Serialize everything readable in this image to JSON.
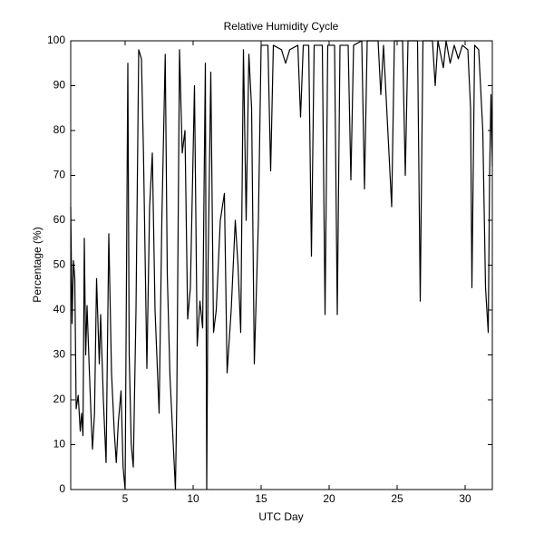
{
  "chart_data": {
    "type": "line",
    "title": "Relative Humidity Cycle",
    "xlabel": "UTC Day",
    "ylabel": "Percentage (%)",
    "xlim": [
      1,
      32
    ],
    "ylim": [
      0,
      100
    ],
    "xticks": [
      5,
      10,
      15,
      20,
      25,
      30
    ],
    "yticks": [
      0,
      10,
      20,
      30,
      40,
      50,
      60,
      70,
      80,
      90,
      100
    ],
    "grid": false,
    "series": [
      {
        "name": "Relative Humidity",
        "color": "#000000",
        "x": [
          1.0,
          1.1,
          1.2,
          1.3,
          1.4,
          1.55,
          1.7,
          1.8,
          1.9,
          2.0,
          2.1,
          2.2,
          2.35,
          2.5,
          2.6,
          2.75,
          2.9,
          3.1,
          3.2,
          3.4,
          3.6,
          3.8,
          4.0,
          4.2,
          4.35,
          4.5,
          4.7,
          4.85,
          5.0,
          5.2,
          5.3,
          5.45,
          5.6,
          5.8,
          6.0,
          6.2,
          6.35,
          6.6,
          6.8,
          7.0,
          7.2,
          7.5,
          7.7,
          7.95,
          8.1,
          8.3,
          8.7,
          8.8,
          9.0,
          9.2,
          9.4,
          9.6,
          9.8,
          10.1,
          10.3,
          10.5,
          10.7,
          10.9,
          11.0,
          11.1,
          11.3,
          11.5,
          11.7,
          12.0,
          12.3,
          12.5,
          12.8,
          13.1,
          13.3,
          13.5,
          13.7,
          13.9,
          14.1,
          14.3,
          14.5,
          14.8,
          15.0,
          15.5,
          15.7,
          15.9,
          16.5,
          16.8,
          17.1,
          17.7,
          17.9,
          18.1,
          18.5,
          18.7,
          18.9,
          19.5,
          19.7,
          19.9,
          20.4,
          20.6,
          20.8,
          21.4,
          21.6,
          21.8,
          22.4,
          22.6,
          22.8,
          23.6,
          23.8,
          24.0,
          24.6,
          24.8,
          25.4,
          25.6,
          25.8,
          26.5,
          26.7,
          26.9,
          27.6,
          27.8,
          28.0,
          28.4,
          28.6,
          28.9,
          29.2,
          29.5,
          29.8,
          30.2,
          30.4,
          30.5,
          30.7,
          31.0,
          31.3,
          31.5,
          31.7,
          31.8,
          31.9,
          32.0
        ],
        "values": [
          63,
          37,
          51,
          47,
          18,
          21,
          13,
          17,
          12,
          56,
          30,
          41,
          28,
          16,
          9,
          17,
          47,
          28,
          39,
          20,
          6,
          57,
          26,
          13,
          6,
          15,
          22,
          5,
          0,
          95,
          30,
          10,
          5,
          40,
          98,
          96,
          75,
          27,
          63,
          75,
          40,
          17,
          60,
          97,
          48,
          25,
          0,
          20,
          98,
          75,
          80,
          38,
          45,
          90,
          32,
          42,
          36,
          95,
          0,
          50,
          93,
          35,
          40,
          60,
          66,
          26,
          40,
          60,
          50,
          35,
          98,
          60,
          97,
          85,
          28,
          60,
          99,
          99,
          71,
          99,
          98,
          95,
          98,
          99,
          83,
          99,
          99,
          52,
          99,
          99,
          39,
          99,
          99,
          39,
          99,
          99,
          69,
          99,
          100,
          67,
          100,
          100,
          88,
          99,
          63,
          100,
          100,
          70,
          100,
          100,
          42,
          100,
          100,
          90,
          100,
          94,
          100,
          95,
          99,
          96,
          99,
          98,
          85,
          45,
          99,
          98,
          80,
          45,
          35,
          70,
          88,
          72
        ]
      }
    ]
  }
}
